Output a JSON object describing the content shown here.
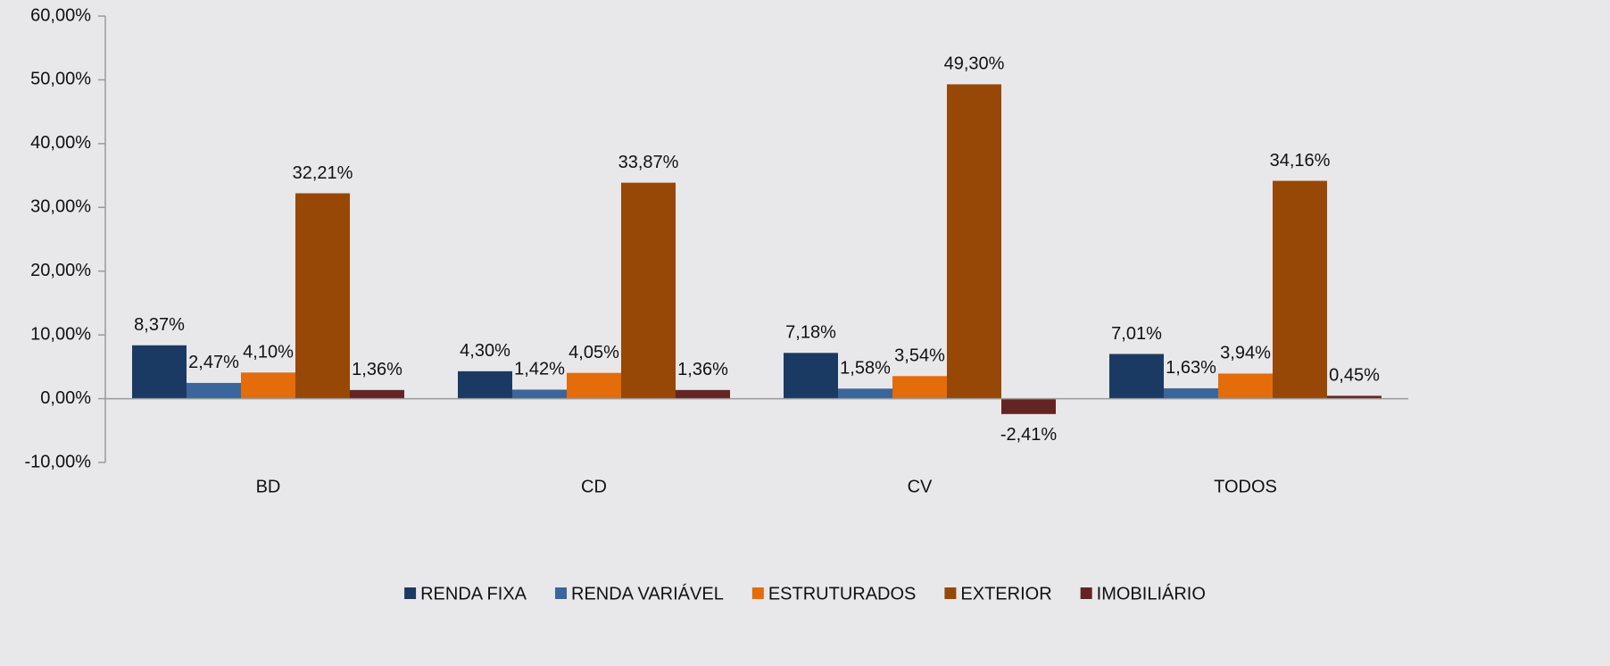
{
  "chart_data": {
    "type": "bar",
    "categories": [
      "BD",
      "CD",
      "CV",
      "TODOS"
    ],
    "series": [
      {
        "name": "RENDA FIXA",
        "color": "#1b3a63",
        "values": [
          8.37,
          4.3,
          7.18,
          7.01
        ],
        "value_labels": [
          "8,37%",
          "4,30%",
          "7,18%",
          "7,01%"
        ]
      },
      {
        "name": "RENDA VARIÁVEL",
        "color": "#3a6699",
        "values": [
          2.47,
          1.42,
          1.58,
          1.63
        ],
        "value_labels": [
          "2,47%",
          "1,42%",
          "1,58%",
          "1,63%"
        ]
      },
      {
        "name": "ESTRUTURADOS",
        "color": "#e46c0a",
        "values": [
          4.1,
          4.05,
          3.54,
          3.94
        ],
        "value_labels": [
          "4,10%",
          "4,05%",
          "3,54%",
          "3,94%"
        ]
      },
      {
        "name": "EXTERIOR",
        "color": "#974706",
        "values": [
          32.21,
          33.87,
          49.3,
          34.16
        ],
        "value_labels": [
          "32,21%",
          "33,87%",
          "49,30%",
          "34,16%"
        ]
      },
      {
        "name": "IMOBILIÁRIO",
        "color": "#632523",
        "values": [
          1.36,
          1.36,
          -2.41,
          0.45
        ],
        "value_labels": [
          "1,36%",
          "1,36%",
          "-2,41%",
          "0,45%"
        ]
      }
    ],
    "ylim": [
      -10,
      60
    ],
    "yticks": [
      {
        "value": -10,
        "label": "-10,00%"
      },
      {
        "value": 0,
        "label": "0,00%"
      },
      {
        "value": 10,
        "label": "10,00%"
      },
      {
        "value": 20,
        "label": "20,00%"
      },
      {
        "value": 30,
        "label": "30,00%"
      },
      {
        "value": 40,
        "label": "40,00%"
      },
      {
        "value": 50,
        "label": "50,00%"
      },
      {
        "value": 60,
        "label": "60,00%"
      }
    ],
    "legend": "bottom"
  }
}
